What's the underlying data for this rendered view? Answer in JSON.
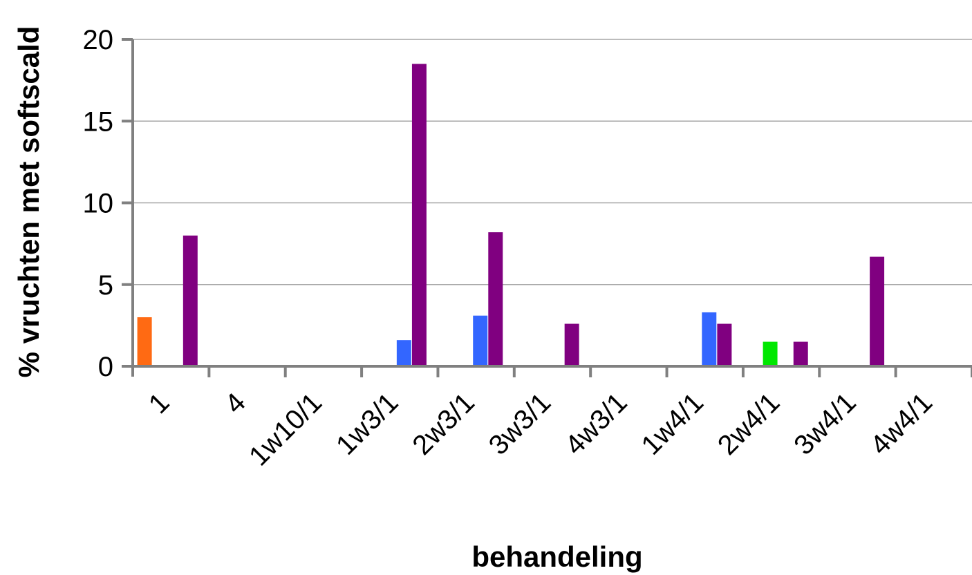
{
  "chart_data": {
    "type": "bar",
    "title": "",
    "xlabel": "behandeling",
    "ylabel": "% vruchten met softscald",
    "ylim": [
      0,
      20
    ],
    "yticks": [
      0,
      5,
      10,
      15,
      20
    ],
    "grid": true,
    "legend": "none",
    "categories": [
      "1",
      "4",
      "1w10/1",
      "1w3/1",
      "2w3/1",
      "3w3/1",
      "4w3/1",
      "1w4/1",
      "2w4/1",
      "3w4/1",
      "4w4/1"
    ],
    "series": [
      {
        "color": "#ff6a13",
        "values": [
          3.0,
          0,
          0,
          0,
          0,
          0,
          0,
          0,
          0,
          0,
          0
        ]
      },
      {
        "color": "#00e800",
        "values": [
          0,
          0,
          0,
          0,
          0,
          0,
          0,
          0,
          1.5,
          0,
          0
        ]
      },
      {
        "color": "#3366ff",
        "values": [
          0,
          0,
          0,
          1.6,
          3.1,
          0,
          0,
          3.3,
          0,
          0,
          0
        ]
      },
      {
        "color": "#800080",
        "values": [
          8.0,
          0,
          0,
          18.5,
          8.2,
          2.6,
          0,
          2.6,
          1.5,
          6.7,
          0
        ]
      }
    ]
  }
}
